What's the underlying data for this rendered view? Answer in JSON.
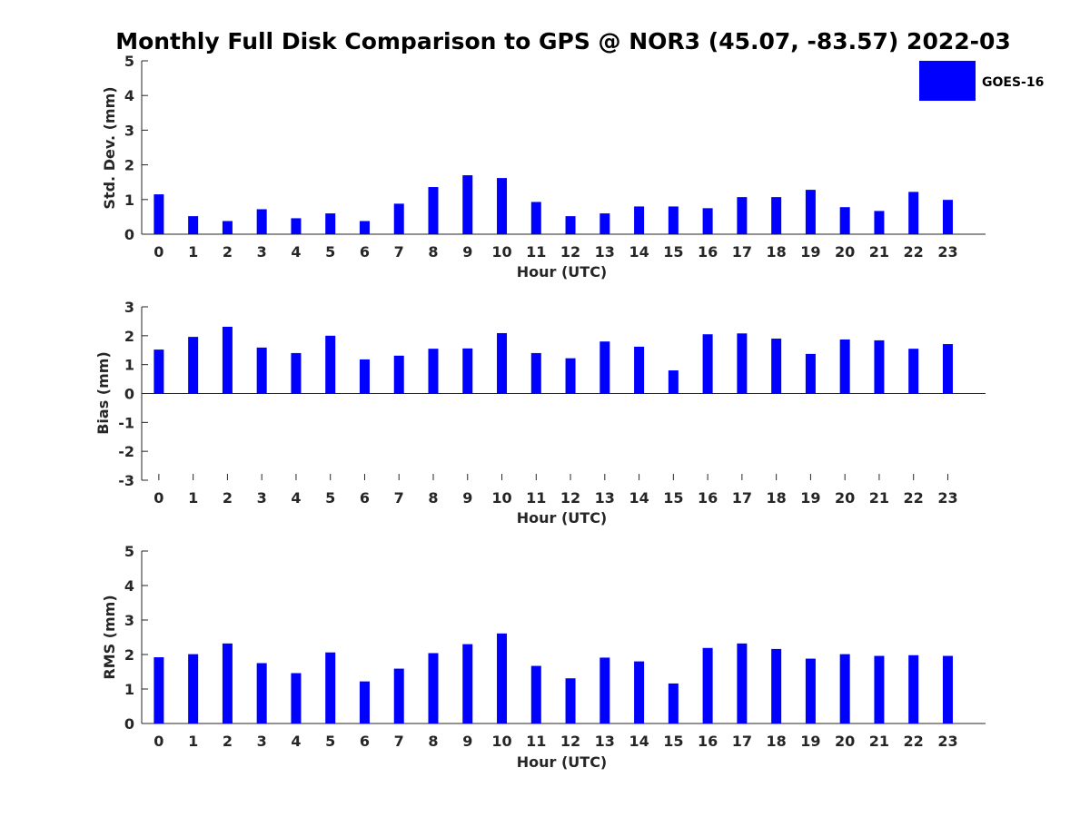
{
  "figure_title": "Monthly Full Disk Comparison to GPS @ NOR3 (45.07, -83.57) 2022-03",
  "legend": {
    "label": "GOES-16",
    "color": "#0000ff"
  },
  "chart_data": [
    {
      "type": "bar",
      "categories": [
        "0",
        "1",
        "2",
        "3",
        "4",
        "5",
        "6",
        "7",
        "8",
        "9",
        "10",
        "11",
        "12",
        "13",
        "14",
        "15",
        "16",
        "17",
        "18",
        "19",
        "20",
        "21",
        "22",
        "23"
      ],
      "series": [
        {
          "name": "GOES-16",
          "values": [
            1.15,
            0.52,
            0.38,
            0.72,
            0.46,
            0.6,
            0.38,
            0.88,
            1.36,
            1.7,
            1.62,
            0.93,
            0.52,
            0.6,
            0.8,
            0.8,
            0.75,
            1.07,
            1.07,
            1.28,
            0.78,
            0.67,
            1.22,
            0.99
          ]
        }
      ],
      "xlabel": "Hour (UTC)",
      "ylabel": "Std. Dev. (mm)",
      "ylim": [
        0,
        5
      ],
      "yticks": [
        "0",
        "1",
        "2",
        "3",
        "4",
        "5"
      ],
      "grid": false
    },
    {
      "type": "bar",
      "categories": [
        "0",
        "1",
        "2",
        "3",
        "4",
        "5",
        "6",
        "7",
        "8",
        "9",
        "10",
        "11",
        "12",
        "13",
        "14",
        "15",
        "16",
        "17",
        "18",
        "19",
        "20",
        "21",
        "22",
        "23"
      ],
      "series": [
        {
          "name": "GOES-16",
          "values": [
            1.52,
            1.96,
            2.31,
            1.59,
            1.4,
            2.0,
            1.18,
            1.31,
            1.55,
            1.56,
            2.09,
            1.4,
            1.22,
            1.8,
            1.62,
            0.8,
            2.05,
            2.08,
            1.9,
            1.37,
            1.87,
            1.84,
            1.55,
            1.71
          ]
        }
      ],
      "xlabel": "Hour (UTC)",
      "ylabel": "Bias (mm)",
      "ylim": [
        -3,
        3
      ],
      "yticks": [
        "-3",
        "-2",
        "-1",
        "0",
        "1",
        "2",
        "3"
      ],
      "grid": false
    },
    {
      "type": "bar",
      "categories": [
        "0",
        "1",
        "2",
        "3",
        "4",
        "5",
        "6",
        "7",
        "8",
        "9",
        "10",
        "11",
        "12",
        "13",
        "14",
        "15",
        "16",
        "17",
        "18",
        "19",
        "20",
        "21",
        "22",
        "23"
      ],
      "series": [
        {
          "name": "GOES-16",
          "values": [
            1.92,
            2.01,
            2.32,
            1.75,
            1.46,
            2.06,
            1.22,
            1.59,
            2.04,
            2.3,
            2.61,
            1.67,
            1.31,
            1.91,
            1.8,
            1.16,
            2.19,
            2.32,
            2.16,
            1.88,
            2.01,
            1.96,
            1.98,
            1.96
          ]
        }
      ],
      "xlabel": "Hour (UTC)",
      "ylabel": "RMS (mm)",
      "ylim": [
        0,
        5
      ],
      "yticks": [
        "0",
        "1",
        "2",
        "3",
        "4",
        "5"
      ],
      "grid": false
    }
  ]
}
